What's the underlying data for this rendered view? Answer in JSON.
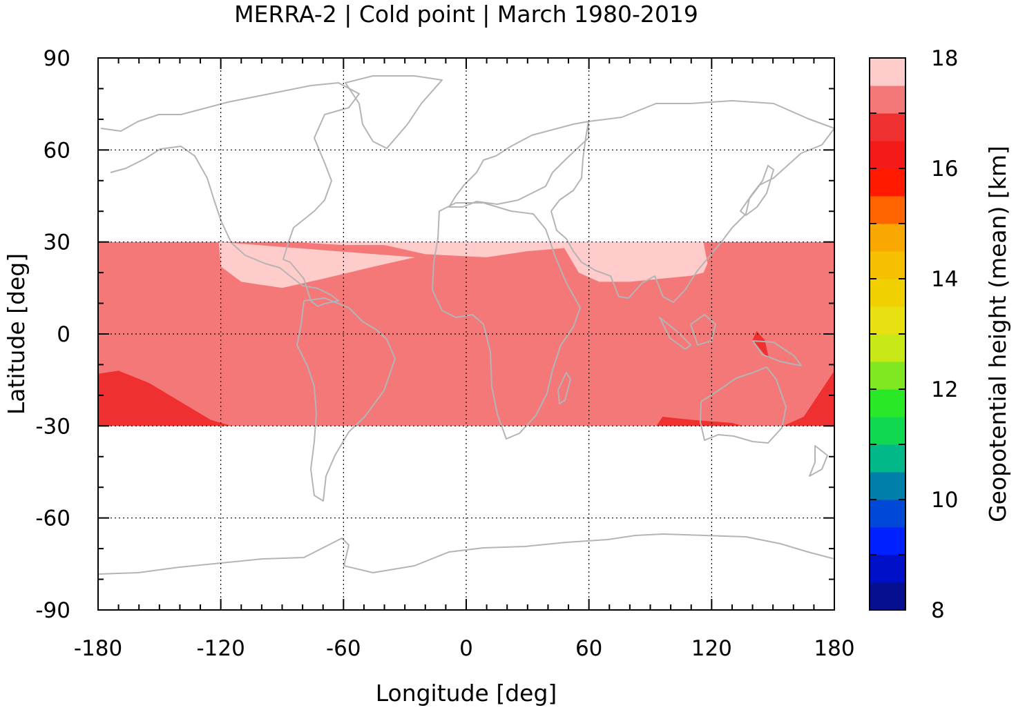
{
  "chart_data": {
    "type": "heatmap",
    "title": "MERRA-2 | Cold point | March 1980-2019",
    "xlabel": "Longitude [deg]",
    "ylabel": "Latitude [deg]",
    "xlim": [
      -180,
      180
    ],
    "ylim": [
      -90,
      90
    ],
    "x_ticks": [
      -180,
      -120,
      -60,
      0,
      60,
      120,
      180
    ],
    "x_tick_labels": [
      "-180",
      "-120",
      "-60",
      "0",
      "60",
      "120",
      "180"
    ],
    "y_ticks": [
      -90,
      -60,
      -30,
      0,
      30,
      60,
      90
    ],
    "y_tick_labels": [
      "-90",
      "-60",
      "-30",
      "0",
      "30",
      "60",
      "90"
    ],
    "grid": true,
    "data_lat_range": [
      -30,
      30
    ],
    "colorbar": {
      "label": "Geopotential height (mean) [km]",
      "range": [
        8,
        18
      ],
      "step": 0.5,
      "ticks": [
        8,
        10,
        12,
        14,
        16,
        18
      ],
      "tick_labels": [
        "8",
        "10",
        "12",
        "14",
        "16",
        "18"
      ],
      "colors": [
        "#0b0b30",
        "#050f8f",
        "#0010c8",
        "#0020ff",
        "#0048d8",
        "#0080a8",
        "#00b888",
        "#10d850",
        "#28e828",
        "#80e820",
        "#c8e818",
        "#e8e010",
        "#f0d000",
        "#f4c000",
        "#f8a800",
        "#ff6400",
        "#ff1a00",
        "#f51a1a",
        "#ee3030",
        "#f57878",
        "#ffcccc"
      ]
    },
    "regions": [
      {
        "level_km": 17.25,
        "color": "#f57878",
        "description_points": [
          [
            -180,
            30
          ],
          [
            180,
            30
          ],
          [
            180,
            -30
          ],
          [
            -180,
            -30
          ]
        ]
      },
      {
        "level_km": 17.75,
        "color": "#ffcccc",
        "description_points": [
          [
            -121,
            30
          ],
          [
            -85,
            30
          ],
          [
            -60,
            29
          ],
          [
            -40,
            29
          ],
          [
            -20,
            26
          ],
          [
            10,
            25
          ],
          [
            30,
            27
          ],
          [
            48,
            28
          ],
          [
            55,
            20
          ],
          [
            65,
            17
          ],
          [
            80,
            17
          ],
          [
            95,
            18
          ],
          [
            110,
            19
          ],
          [
            116,
            20
          ],
          [
            118,
            23
          ],
          [
            116,
            30
          ],
          [
            -121,
            30
          ],
          [
            -120,
            22
          ],
          [
            -110,
            17
          ],
          [
            -90,
            15
          ],
          [
            -70,
            18
          ],
          [
            -45,
            22
          ],
          [
            -25,
            25
          ]
        ]
      },
      {
        "level_km": 16.75,
        "color": "#ee3030",
        "description_points": [
          [
            -180,
            -13
          ],
          [
            -170,
            -12
          ],
          [
            -155,
            -16
          ],
          [
            -140,
            -22
          ],
          [
            -125,
            -28
          ],
          [
            -115,
            -30
          ],
          [
            -180,
            -30
          ]
        ]
      },
      {
        "level_km": 16.75,
        "color": "#ee3030",
        "description_points": [
          [
            93,
            -30
          ],
          [
            96,
            -27
          ],
          [
            110,
            -28
          ],
          [
            130,
            -29
          ],
          [
            135,
            -30
          ]
        ]
      },
      {
        "level_km": 16.75,
        "color": "#ee3030",
        "description_points": [
          [
            155,
            -30
          ],
          [
            165,
            -27
          ],
          [
            172,
            -20
          ],
          [
            180,
            -12
          ],
          [
            180,
            -30
          ]
        ]
      },
      {
        "level_km": 16.75,
        "color": "#ee3030",
        "description_points": [
          [
            142,
            1
          ],
          [
            146,
            -2
          ],
          [
            148,
            -8
          ],
          [
            145,
            -6
          ],
          [
            140,
            -2
          ]
        ]
      }
    ]
  }
}
